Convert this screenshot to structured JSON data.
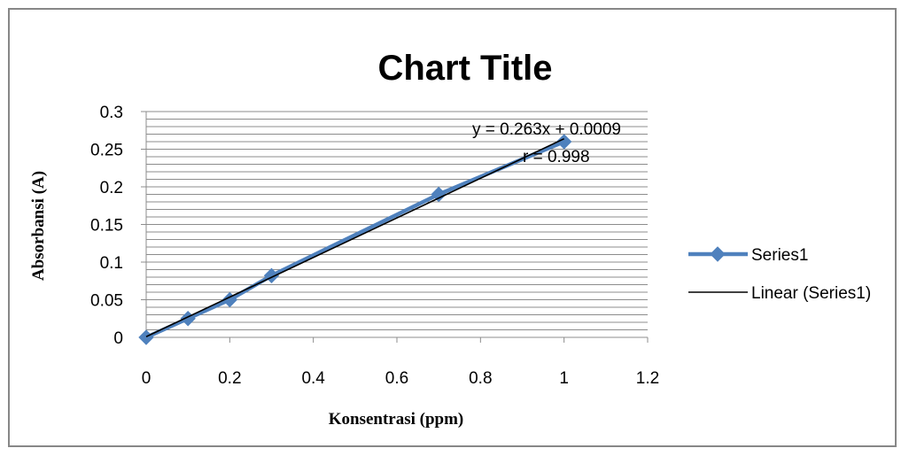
{
  "chart_data": {
    "type": "scatter",
    "title": "Chart Title",
    "xlabel": "Konsentrasi (ppm)",
    "ylabel": "Absorbansi (A)",
    "xlim": [
      0,
      1.2
    ],
    "ylim": [
      0,
      0.3
    ],
    "x_ticks": [
      "0",
      "0.2",
      "0.4",
      "0.6",
      "0.8",
      "1",
      "1.2"
    ],
    "y_ticks": [
      "0",
      "0.05",
      "0.1",
      "0.15",
      "0.2",
      "0.25",
      "0.3"
    ],
    "grid": true,
    "legend_position": "right",
    "series": [
      {
        "name": "Series1",
        "color": "#4f81bd",
        "marker": "diamond",
        "x": [
          0,
          0.1,
          0.2,
          0.3,
          0.7,
          1.0
        ],
        "y": [
          0,
          0.025,
          0.05,
          0.082,
          0.19,
          0.26
        ]
      }
    ],
    "trendline": {
      "name": "Linear (Series1)",
      "color": "#000000",
      "slope": 0.263,
      "intercept": 0.0009,
      "x_range": [
        0,
        1.0
      ]
    },
    "annotations": {
      "equation": "y = 0.263x + 0.0009",
      "r_value": "r = 0.998"
    }
  }
}
